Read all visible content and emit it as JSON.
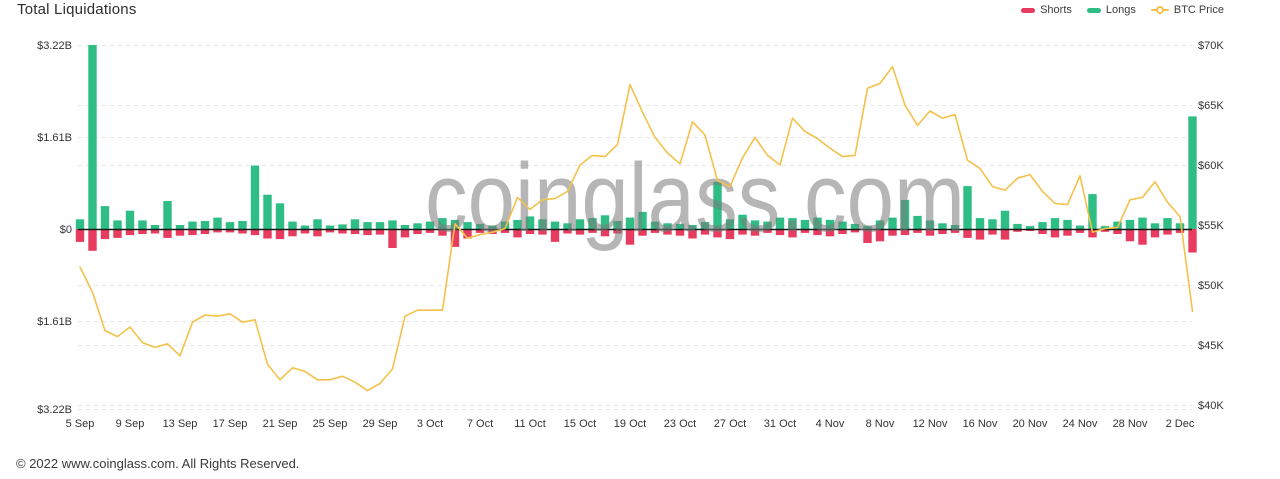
{
  "header": {
    "title": "Total Liquidations"
  },
  "legend": {
    "items": [
      {
        "label": "Shorts",
        "color": "#e73c5f",
        "marker": "pill"
      },
      {
        "label": "Longs",
        "color": "#2ebd85",
        "marker": "pill"
      },
      {
        "label": "BTC Price",
        "color": "#f4c14b",
        "marker": "line-dot"
      }
    ]
  },
  "watermark": "coinglass.com",
  "footer": {
    "copyright": "© 2022 www.coinglass.com. All Rights Reserved."
  },
  "chart_data": {
    "type": "bar+line",
    "title": "Total Liquidations",
    "legend_position": "top-right",
    "grid": "dashed-horizontal",
    "left_axis": {
      "unit": "USD billions",
      "range": [
        -3.22,
        3.22
      ],
      "tick_labels": [
        "$3.22B",
        "$1.61B",
        "$0",
        "$1.61B",
        "$3.22B"
      ]
    },
    "right_axis": {
      "unit": "USD thousands",
      "range": [
        40,
        70
      ],
      "tick_labels": [
        "$70K",
        "$65K",
        "$60K",
        "$55K",
        "$50K",
        "$45K",
        "$40K"
      ]
    },
    "x_tick_labels": [
      "5 Sep",
      "9 Sep",
      "13 Sep",
      "17 Sep",
      "21 Sep",
      "25 Sep",
      "29 Sep",
      "3 Oct",
      "7 Oct",
      "11 Oct",
      "15 Oct",
      "19 Oct",
      "23 Oct",
      "27 Oct",
      "31 Oct",
      "4 Nov",
      "8 Nov",
      "12 Nov",
      "16 Nov",
      "20 Nov",
      "24 Nov",
      "28 Nov",
      "2 Dec"
    ],
    "dates": [
      "5 Sep",
      "6 Sep",
      "7 Sep",
      "8 Sep",
      "9 Sep",
      "10 Sep",
      "11 Sep",
      "12 Sep",
      "13 Sep",
      "14 Sep",
      "15 Sep",
      "16 Sep",
      "17 Sep",
      "18 Sep",
      "19 Sep",
      "20 Sep",
      "21 Sep",
      "22 Sep",
      "23 Sep",
      "24 Sep",
      "25 Sep",
      "26 Sep",
      "27 Sep",
      "28 Sep",
      "29 Sep",
      "30 Sep",
      "1 Oct",
      "2 Oct",
      "3 Oct",
      "4 Oct",
      "5 Oct",
      "6 Oct",
      "7 Oct",
      "8 Oct",
      "9 Oct",
      "10 Oct",
      "11 Oct",
      "12 Oct",
      "13 Oct",
      "14 Oct",
      "15 Oct",
      "16 Oct",
      "17 Oct",
      "18 Oct",
      "19 Oct",
      "20 Oct",
      "21 Oct",
      "22 Oct",
      "23 Oct",
      "24 Oct",
      "25 Oct",
      "26 Oct",
      "27 Oct",
      "28 Oct",
      "29 Oct",
      "30 Oct",
      "31 Oct",
      "1 Nov",
      "2 Nov",
      "3 Nov",
      "4 Nov",
      "5 Nov",
      "6 Nov",
      "7 Nov",
      "8 Nov",
      "9 Nov",
      "10 Nov",
      "11 Nov",
      "12 Nov",
      "13 Nov",
      "14 Nov",
      "15 Nov",
      "16 Nov",
      "17 Nov",
      "18 Nov",
      "19 Nov",
      "20 Nov",
      "21 Nov",
      "22 Nov",
      "23 Nov",
      "24 Nov",
      "25 Nov",
      "26 Nov",
      "27 Nov",
      "28 Nov",
      "29 Nov",
      "30 Nov",
      "1 Dec",
      "2 Dec",
      "3 Dec"
    ],
    "series": [
      {
        "name": "Longs",
        "type": "bar",
        "color": "#2ebd85",
        "unit": "$B",
        "values": [
          0.17,
          3.22,
          0.4,
          0.15,
          0.32,
          0.15,
          0.07,
          0.49,
          0.07,
          0.13,
          0.14,
          0.2,
          0.12,
          0.14,
          1.11,
          0.6,
          0.45,
          0.13,
          0.06,
          0.17,
          0.06,
          0.08,
          0.17,
          0.12,
          0.12,
          0.15,
          0.07,
          0.1,
          0.13,
          0.19,
          0.16,
          0.12,
          0.09,
          0.06,
          0.13,
          0.16,
          0.22,
          0.17,
          0.13,
          0.1,
          0.17,
          0.19,
          0.24,
          0.14,
          0.2,
          0.3,
          0.13,
          0.1,
          0.09,
          0.07,
          0.12,
          0.83,
          0.17,
          0.25,
          0.15,
          0.13,
          0.2,
          0.19,
          0.16,
          0.2,
          0.16,
          0.13,
          0.09,
          0.05,
          0.15,
          0.2,
          0.51,
          0.23,
          0.15,
          0.1,
          0.07,
          0.75,
          0.19,
          0.17,
          0.32,
          0.09,
          0.05,
          0.12,
          0.19,
          0.16,
          0.06,
          0.61,
          0.05,
          0.13,
          0.16,
          0.2,
          0.1,
          0.19,
          0.1,
          1.97
        ]
      },
      {
        "name": "Shorts",
        "type": "bar",
        "color": "#e73c5f",
        "unit": "$B",
        "values": [
          0.23,
          0.39,
          0.18,
          0.16,
          0.11,
          0.09,
          0.08,
          0.16,
          0.12,
          0.11,
          0.09,
          0.06,
          0.06,
          0.08,
          0.11,
          0.17,
          0.18,
          0.13,
          0.08,
          0.13,
          0.06,
          0.08,
          0.09,
          0.11,
          0.1,
          0.34,
          0.15,
          0.09,
          0.07,
          0.12,
          0.32,
          0.17,
          0.07,
          0.09,
          0.07,
          0.15,
          0.09,
          0.1,
          0.23,
          0.08,
          0.1,
          0.07,
          0.13,
          0.08,
          0.28,
          0.12,
          0.07,
          0.1,
          0.12,
          0.17,
          0.1,
          0.15,
          0.18,
          0.1,
          0.12,
          0.07,
          0.11,
          0.15,
          0.07,
          0.11,
          0.13,
          0.09,
          0.06,
          0.25,
          0.22,
          0.12,
          0.11,
          0.07,
          0.12,
          0.09,
          0.07,
          0.16,
          0.19,
          0.1,
          0.19,
          0.05,
          0.03,
          0.09,
          0.15,
          0.12,
          0.07,
          0.15,
          0.05,
          0.09,
          0.22,
          0.28,
          0.15,
          0.1,
          0.07,
          0.42
        ]
      },
      {
        "name": "BTC Price",
        "type": "line",
        "color": "#f4c14b",
        "unit": "$K",
        "values": [
          51.5,
          49.4,
          46.2,
          45.7,
          46.5,
          45.2,
          44.8,
          45.1,
          44.1,
          46.9,
          47.5,
          47.4,
          47.6,
          46.9,
          47.1,
          43.4,
          42.1,
          43.1,
          42.8,
          42.1,
          42.1,
          42.4,
          41.9,
          41.2,
          41.8,
          43.0,
          47.4,
          47.9,
          47.9,
          47.9,
          55.1,
          53.9,
          54.2,
          54.4,
          54.7,
          57.3,
          56.3,
          57.1,
          57.2,
          57.8,
          60.0,
          60.8,
          60.7,
          61.7,
          66.7,
          64.4,
          62.3,
          61.0,
          60.1,
          63.6,
          62.5,
          58.7,
          58.2,
          60.6,
          62.3,
          60.8,
          60.0,
          63.9,
          62.8,
          62.2,
          61.4,
          60.7,
          60.8,
          66.4,
          66.8,
          68.2,
          65.0,
          63.3,
          64.5,
          63.9,
          64.2,
          60.4,
          59.7,
          58.2,
          57.9,
          58.9,
          59.2,
          57.8,
          56.8,
          56.7,
          59.1,
          54.4,
          54.7,
          54.8,
          57.1,
          57.3,
          58.6,
          56.9,
          55.7,
          47.8
        ]
      }
    ]
  }
}
